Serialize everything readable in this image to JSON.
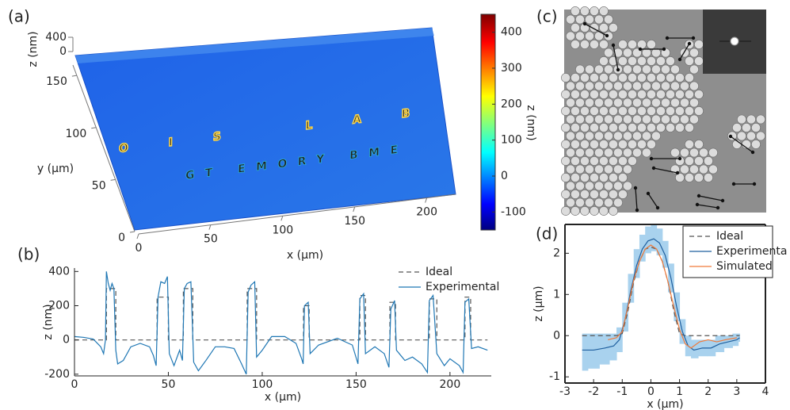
{
  "chart_data": [
    {
      "type": "surface3d",
      "panel_label": "(a)",
      "text_lines": [
        "OIS LAB",
        "GT EMORY BME"
      ],
      "xlabel": "x (µm)",
      "ylabel": "y (µm)",
      "zlabel": "z (nm)",
      "xlim": [
        0,
        220
      ],
      "ylim": [
        0,
        160
      ],
      "zlim": [
        0,
        400
      ],
      "xticks": [
        0,
        50,
        100,
        150,
        200
      ],
      "yticks": [
        0,
        50,
        100,
        150
      ],
      "zticks": [
        0,
        400
      ],
      "colorbar": {
        "label": "z (nm)",
        "clim": [
          -150,
          450
        ],
        "ticks": [
          -100,
          0,
          100,
          200,
          300,
          400
        ]
      }
    },
    {
      "type": "line",
      "panel_label": "(b)",
      "xlabel": "x (µm)",
      "ylabel": "z (nm)",
      "xlim": [
        0,
        222
      ],
      "ylim": [
        -210,
        420
      ],
      "xticks": [
        0,
        50,
        100,
        150,
        200
      ],
      "yticks": [
        -200,
        0,
        200,
        400
      ],
      "legend": "upper right",
      "frame": false,
      "series": [
        {
          "name": "Ideal",
          "color": "#555555",
          "line_style": "dashed",
          "x": [
            0,
            17,
            17,
            22,
            22,
            44,
            44,
            50,
            50,
            58,
            58,
            63,
            63,
            92,
            92,
            97,
            97,
            122,
            122,
            125,
            125,
            152,
            152,
            155,
            155,
            168,
            168,
            171,
            171,
            189,
            189,
            193,
            193,
            208,
            208,
            211,
            211,
            220
          ],
          "values": [
            0,
            0,
            300,
            300,
            0,
            0,
            250,
            250,
            0,
            0,
            300,
            300,
            0,
            0,
            300,
            300,
            0,
            0,
            200,
            200,
            0,
            0,
            260,
            260,
            0,
            0,
            220,
            220,
            0,
            0,
            240,
            240,
            0,
            0,
            250,
            250,
            0,
            0
          ]
        },
        {
          "name": "Experimental",
          "color": "#1f77b4",
          "line_style": "solid",
          "x": [
            0,
            5,
            10,
            14,
            15.5,
            16.5,
            17,
            18,
            19,
            20,
            21,
            22,
            23,
            26,
            30,
            35,
            40,
            42,
            43.5,
            44.5,
            46,
            48,
            49.5,
            50.5,
            53,
            56,
            57.5,
            58.5,
            60,
            62,
            63.5,
            66,
            70,
            75,
            80,
            85,
            89,
            91.5,
            92.5,
            94,
            96,
            97,
            100,
            105,
            112,
            118,
            121,
            121.8,
            122.5,
            124.5,
            125.5,
            130,
            140,
            148,
            151,
            152,
            154,
            155,
            160,
            165,
            167.5,
            168.5,
            170.5,
            171.5,
            176,
            180,
            185,
            188,
            189,
            191,
            193,
            197,
            200,
            205,
            207,
            208,
            210,
            211.5,
            215,
            220
          ],
          "values": [
            20,
            15,
            5,
            -40,
            -80,
            0,
            400,
            330,
            290,
            330,
            300,
            -60,
            -140,
            -120,
            -40,
            -20,
            -40,
            -90,
            -150,
            250,
            340,
            330,
            370,
            -80,
            -150,
            -60,
            -120,
            300,
            330,
            340,
            -130,
            -180,
            -120,
            -40,
            -40,
            -50,
            -140,
            -200,
            280,
            320,
            340,
            -100,
            -60,
            20,
            20,
            -20,
            -110,
            -140,
            200,
            220,
            -80,
            -30,
            10,
            -30,
            -140,
            240,
            270,
            -80,
            -40,
            -80,
            -160,
            180,
            230,
            -60,
            -120,
            -100,
            -140,
            -190,
            230,
            260,
            -80,
            -150,
            -110,
            -150,
            -190,
            220,
            240,
            -50,
            -40,
            -60
          ]
        }
      ]
    },
    {
      "type": "image",
      "panel_label": "(c)"
    },
    {
      "type": "line",
      "panel_label": "(d)",
      "xlabel": "x (µm)",
      "ylabel": "z (µm)",
      "xlim": [
        -3,
        4
      ],
      "ylim": [
        -1.15,
        2.7
      ],
      "xticks": [
        -3,
        -2,
        -1,
        0,
        1,
        2,
        3,
        4
      ],
      "yticks": [
        -1,
        0,
        1,
        2
      ],
      "legend": "upper right",
      "frame": true,
      "series": [
        {
          "name": "Ideal",
          "color": "#555555",
          "line_style": "dashed",
          "x": [
            -2.4,
            -1.2,
            -1,
            -0.8,
            -0.6,
            -0.4,
            -0.2,
            0,
            0.2,
            0.4,
            0.6,
            0.8,
            1,
            1.2,
            3.1
          ],
          "values": [
            0,
            0,
            0.05,
            0.6,
            1.3,
            1.8,
            2.1,
            2.15,
            2.1,
            1.8,
            1.3,
            0.6,
            0.05,
            0,
            0
          ]
        },
        {
          "name": "Experimenta",
          "color": "#1f5f9e",
          "line_style": "solid",
          "band_color": "#a9d2ee",
          "x": [
            -2.4,
            -2.0,
            -1.6,
            -1.3,
            -1.1,
            -0.9,
            -0.7,
            -0.5,
            -0.3,
            -0.1,
            0.1,
            0.3,
            0.5,
            0.7,
            0.9,
            1.1,
            1.3,
            1.5,
            1.8,
            2.1,
            2.4,
            2.7,
            3.0,
            3.1
          ],
          "values": [
            -0.35,
            -0.35,
            -0.3,
            -0.25,
            -0.1,
            0.4,
            1.1,
            1.7,
            2.1,
            2.3,
            2.35,
            2.25,
            1.95,
            1.4,
            0.7,
            0.1,
            -0.25,
            -0.35,
            -0.3,
            -0.3,
            -0.2,
            -0.15,
            -0.1,
            -0.05
          ],
          "band_lower": [
            -0.85,
            -0.8,
            -0.7,
            -0.6,
            -0.4,
            0.1,
            0.8,
            1.4,
            1.8,
            2.0,
            2.05,
            1.95,
            1.65,
            1.05,
            0.35,
            -0.2,
            -0.5,
            -0.55,
            -0.5,
            -0.5,
            -0.4,
            -0.3,
            -0.25,
            -0.15
          ],
          "band_upper": [
            0.05,
            0.05,
            0.05,
            0.05,
            0.2,
            0.8,
            1.5,
            2.1,
            2.45,
            2.65,
            2.7,
            2.6,
            2.3,
            1.75,
            1.05,
            0.4,
            0.0,
            -0.1,
            -0.1,
            -0.1,
            0.0,
            0.0,
            0.05,
            0.05
          ]
        },
        {
          "name": "Simulated",
          "color": "#f07a3a",
          "line_style": "solid",
          "x": [
            -1.5,
            -1.2,
            -1,
            -0.8,
            -0.6,
            -0.4,
            -0.2,
            0,
            0.2,
            0.4,
            0.6,
            0.8,
            1,
            1.2,
            1.4,
            1.7,
            2,
            2.3,
            2.6,
            3.0
          ],
          "values": [
            -0.1,
            -0.05,
            0.1,
            0.7,
            1.35,
            1.8,
            2.1,
            2.2,
            2.1,
            1.8,
            1.3,
            0.7,
            0.15,
            -0.2,
            -0.3,
            -0.15,
            -0.1,
            -0.15,
            -0.1,
            -0.05
          ]
        }
      ]
    }
  ]
}
